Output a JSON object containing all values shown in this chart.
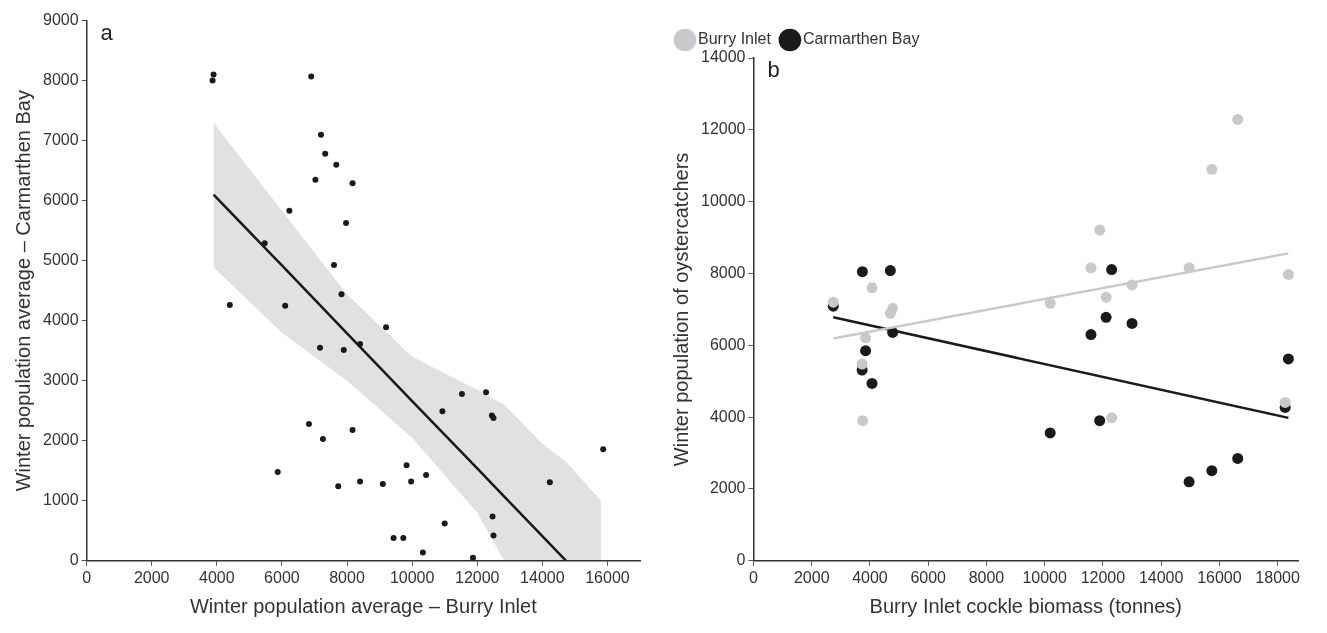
{
  "chart_data": [
    {
      "type": "scatter",
      "annotations": [
        "a"
      ],
      "xlabel": "Winter population average – Burry Inlet",
      "ylabel": "Winter population average – Carmarthen Bay",
      "xlim": [
        0,
        17000
      ],
      "ylim": [
        0,
        9000
      ],
      "xticks": [
        0,
        2000,
        4000,
        6000,
        8000,
        10000,
        12000,
        14000,
        16000
      ],
      "yticks": [
        0,
        1000,
        2000,
        3000,
        4000,
        5000,
        6000,
        7000,
        8000,
        9000
      ],
      "grid": false,
      "legend": false,
      "marker": "circle",
      "series": [
        {
          "type": "line",
          "marker": "none",
          "line_style": "solid",
          "color": "#1a1a1a",
          "x": [
            3900,
            6000,
            8000,
            10000,
            12000,
            12830,
            14000,
            14730,
            15800
          ],
          "values": [
            6100,
            4920,
            3790,
            2660,
            1540,
            1070,
            410,
            0,
            null
          ],
          "upper": [
            7300,
            5830,
            4440,
            3400,
            2850,
            2600,
            1950,
            1650,
            1000
          ],
          "lower": [
            4890,
            3800,
            3000,
            2050,
            800,
            0,
            0,
            0,
            0
          ]
        },
        {
          "color": "#1a1a1a",
          "x": [
            3870,
            3900,
            6900,
            7200,
            7330,
            7670,
            7030,
            8170,
            7970,
            6230,
            5470,
            7600,
            7830,
            4400,
            6100,
            9200,
            8400,
            7900,
            7170,
            6830,
            7260,
            8170,
            5870,
            7730,
            8400,
            9100,
            9430,
            9730,
            10930,
            11530,
            12270,
            12450,
            12500,
            15870,
            9830,
            9970,
            10430,
            14230,
            11000,
            12470,
            12500,
            10330,
            11870
          ],
          "values": [
            8000,
            8100,
            8070,
            7100,
            6780,
            6600,
            6350,
            6290,
            5630,
            5830,
            5290,
            4930,
            4440,
            4260,
            4250,
            3890,
            3610,
            3510,
            3550,
            2280,
            2030,
            2180,
            1480,
            1240,
            1320,
            1280,
            380,
            380,
            2490,
            2780,
            2810,
            2420,
            2380,
            1860,
            1590,
            1320,
            1430,
            1310,
            620,
            740,
            420,
            140,
            50
          ]
        }
      ]
    },
    {
      "type": "scatter",
      "annotations": [
        "b"
      ],
      "xlabel": "Burry Inlet cockle biomass (tonnes)",
      "ylabel": "Winter population of oystercatchers",
      "xlim": [
        0,
        18700
      ],
      "ylim": [
        0,
        14000
      ],
      "xticks": [
        0,
        2000,
        4000,
        6000,
        8000,
        10000,
        12000,
        14000,
        16000,
        18000
      ],
      "yticks": [
        0,
        2000,
        4000,
        6000,
        8000,
        10000,
        12000,
        14000
      ],
      "grid": false,
      "legend": "top left",
      "marker": "circle",
      "series": [
        {
          "name": "Burry Inlet",
          "color": "#c8c9cb",
          "x": [
            2740,
            4070,
            4780,
            4700,
            3850,
            3730,
            3750,
            16630,
            15740,
            11890,
            11590,
            14960,
            18370,
            13000,
            12110,
            10190,
            12300,
            18260
          ],
          "values": [
            7200,
            7600,
            7030,
            6890,
            6210,
            5480,
            3900,
            12290,
            10900,
            9210,
            8160,
            8160,
            7970,
            7680,
            7340,
            7170,
            3980,
            4410
          ]
        },
        {
          "name": "Carmarthen Bay",
          "color": "#1a1a1a",
          "x": [
            2740,
            3740,
            4700,
            4780,
            3850,
            3730,
            4070,
            12300,
            12110,
            13000,
            11590,
            18370,
            18260,
            10190,
            11890,
            16630,
            15740,
            14960
          ],
          "values": [
            7090,
            8050,
            8080,
            6360,
            5850,
            5310,
            4940,
            8110,
            6780,
            6610,
            6300,
            5620,
            4270,
            3560,
            3900,
            2850,
            2510,
            2200
          ]
        },
        {
          "type": "line",
          "marker": "none",
          "line_style": "solid",
          "color": "#c8c9cb",
          "x": [
            2740,
            18370
          ],
          "values": [
            6190,
            8560
          ]
        },
        {
          "type": "line",
          "marker": "none",
          "line_style": "solid",
          "color": "#1a1a1a",
          "x": [
            2740,
            18370
          ],
          "values": [
            6780,
            3980
          ]
        }
      ]
    }
  ]
}
